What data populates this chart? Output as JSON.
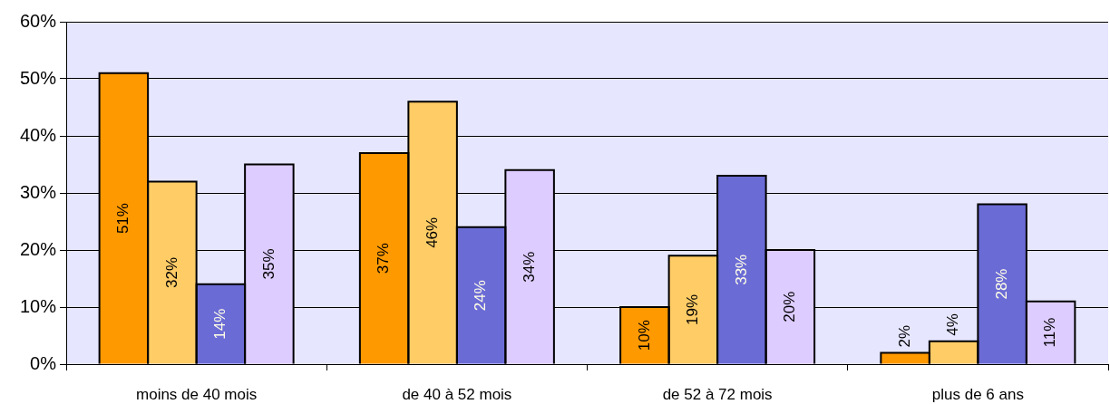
{
  "chart_data": {
    "type": "bar",
    "categories": [
      "moins de 40 mois",
      "de 40 à 52 mois",
      "de 52 à 72 mois",
      "plus de 6 ans"
    ],
    "series": [
      {
        "color": "#ff9900",
        "values": [
          51,
          37,
          10,
          2
        ],
        "value_labels": [
          "51%",
          "37%",
          "10%",
          "2%"
        ]
      },
      {
        "color": "#ffcc66",
        "values": [
          32,
          46,
          19,
          4
        ],
        "value_labels": [
          "32%",
          "46%",
          "19%",
          "4%"
        ]
      },
      {
        "color": "#6b6bd6",
        "values": [
          14,
          24,
          33,
          28
        ],
        "value_labels": [
          "14%",
          "24%",
          "33%",
          "28%"
        ]
      },
      {
        "color": "#ddccff",
        "values": [
          35,
          34,
          20,
          11
        ],
        "value_labels": [
          "35%",
          "34%",
          "20%",
          "11%"
        ]
      }
    ],
    "ylim": [
      0,
      60
    ],
    "yticks": [
      {
        "value": 0,
        "label": "0%"
      },
      {
        "value": 10,
        "label": "10%"
      },
      {
        "value": 20,
        "label": "20%"
      },
      {
        "value": 30,
        "label": "30%"
      },
      {
        "value": 40,
        "label": "40%"
      },
      {
        "value": 50,
        "label": "50%"
      },
      {
        "value": 60,
        "label": "60%"
      }
    ],
    "grid": "y"
  }
}
